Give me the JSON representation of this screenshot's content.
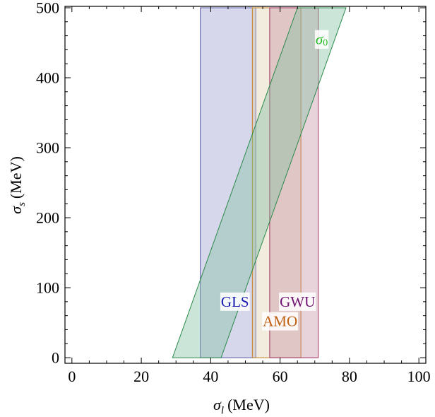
{
  "chart_data": {
    "type": "area",
    "xlabel": "σ_l (MeV)",
    "ylabel": "σ_s (MeV)",
    "xlabel_parts": {
      "symbol": "σ",
      "sub": "l",
      "unit": "(MeV)"
    },
    "ylabel_parts": {
      "symbol": "σ",
      "sub": "s",
      "unit": "(MeV)"
    },
    "xlim": [
      -2,
      102
    ],
    "ylim": [
      -8,
      502
    ],
    "xticks": [
      0,
      20,
      40,
      60,
      80,
      100
    ],
    "yticks": [
      0,
      100,
      200,
      300,
      400,
      500
    ],
    "grid": false,
    "series": [
      {
        "name": "GLS",
        "label_parts": {
          "text": "GLS"
        },
        "shape": "vertical-band",
        "x_range": [
          37,
          53
        ],
        "y_range": [
          0,
          500
        ],
        "fill": "#8c8cc8",
        "stroke": "#5a5aa8",
        "label_color": "#1a1ab0",
        "label_pos": [
          47,
          80
        ]
      },
      {
        "name": "AMO",
        "label_parts": {
          "text": "AMO"
        },
        "shape": "vertical-band",
        "x_range": [
          52,
          66
        ],
        "y_range": [
          0,
          500
        ],
        "fill": "#d8c8a0",
        "stroke": "#c08020",
        "label_color": "#c06010",
        "label_pos": [
          60,
          52
        ]
      },
      {
        "name": "GWU",
        "label_parts": {
          "text": "GWU"
        },
        "shape": "vertical-band",
        "x_range": [
          57,
          71
        ],
        "y_range": [
          0,
          500
        ],
        "fill": "#c08098",
        "stroke": "#a03060",
        "label_color": "#701070",
        "label_pos": [
          65,
          80
        ]
      },
      {
        "name": "σ_0",
        "label_parts": {
          "symbol": "σ",
          "sub": "0"
        },
        "shape": "parallelogram",
        "polygon": [
          [
            29,
            0
          ],
          [
            43,
            0
          ],
          [
            79,
            500
          ],
          [
            65,
            500
          ]
        ],
        "fill": "#7fbf9f",
        "stroke": "#2a8a4a",
        "label_color": "#22bb22",
        "label_pos": [
          72,
          455
        ]
      }
    ]
  }
}
